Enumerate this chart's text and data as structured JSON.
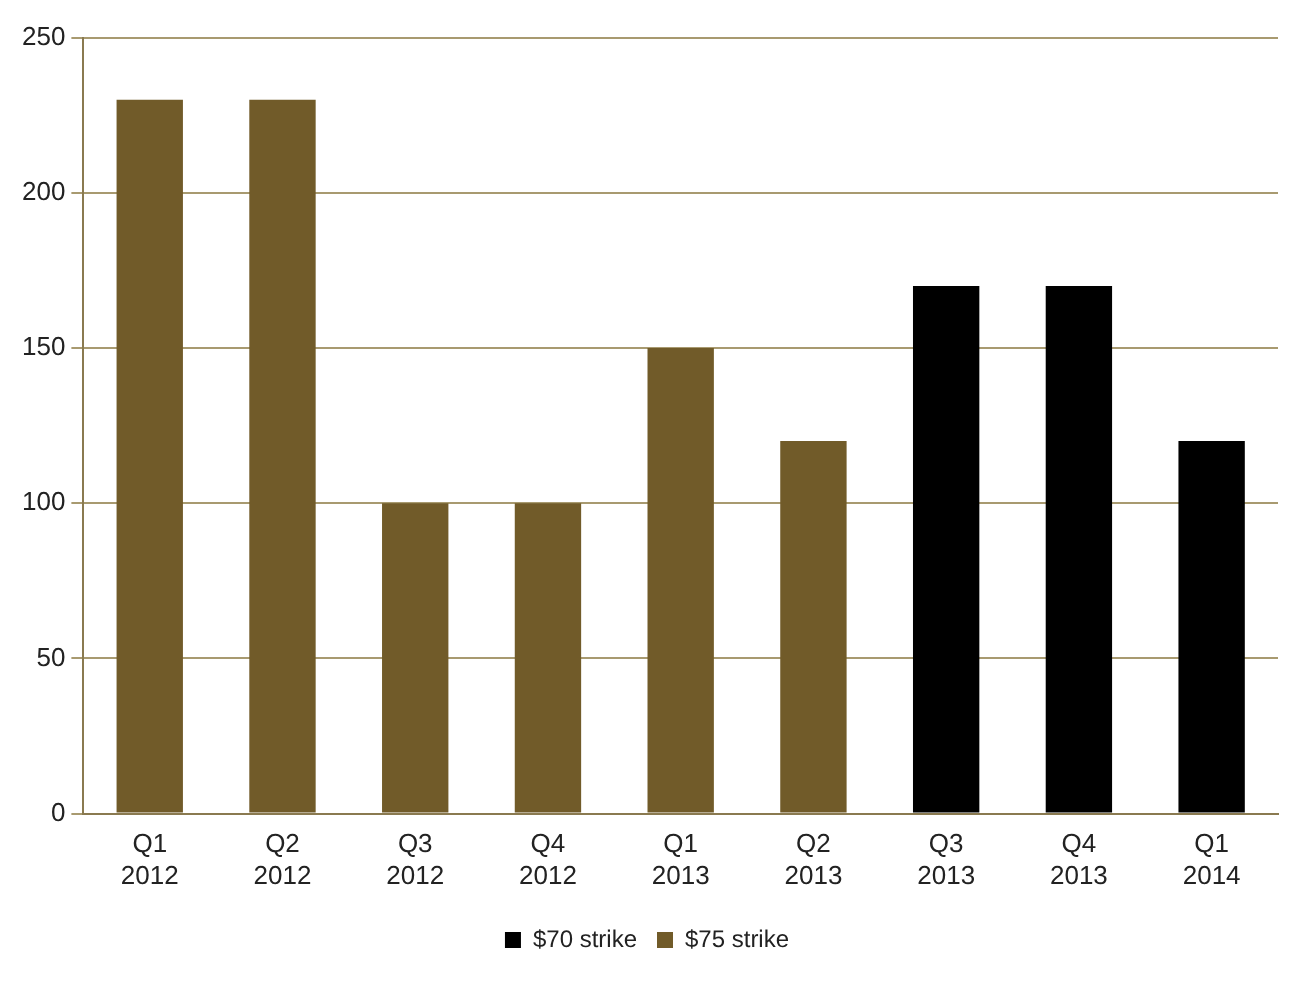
{
  "chart_data": {
    "type": "bar",
    "categories": [
      "Q1 2012",
      "Q2 2012",
      "Q3 2012",
      "Q4 2012",
      "Q1 2013",
      "Q2 2013",
      "Q3 2013",
      "Q4 2013",
      "Q1 2014"
    ],
    "series": [
      {
        "name": "$70 strike",
        "color": "#000000",
        "values": [
          null,
          null,
          null,
          null,
          null,
          null,
          170,
          170,
          120
        ]
      },
      {
        "name": "$75 strike",
        "color": "#715b29",
        "values": [
          230,
          230,
          100,
          100,
          150,
          120,
          null,
          null,
          null
        ]
      }
    ],
    "ylim": [
      0,
      250
    ],
    "yticks": [
      0,
      50,
      100,
      150,
      200,
      250
    ],
    "grid": "y",
    "legend": "bottom"
  }
}
